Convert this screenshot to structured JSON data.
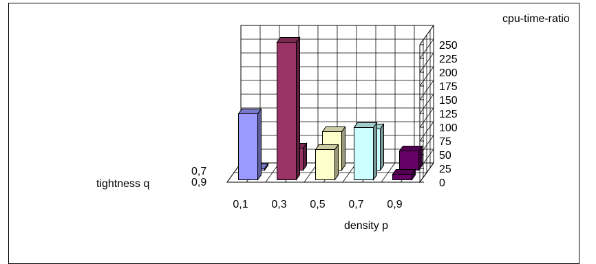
{
  "chart_data": {
    "type": "bar",
    "subtype": "3d-column",
    "title": "",
    "zlabel": "cpu-time-ratio",
    "xlabel": "density p",
    "ylabel": "tightness q",
    "x_categories": [
      "0,1",
      "0,3",
      "0,5",
      "0,7",
      "0,9"
    ],
    "y_categories": [
      "0,7",
      "0,9"
    ],
    "z_ticks": [
      "0",
      "25",
      "50",
      "75",
      "100",
      "125",
      "150",
      "175",
      "200",
      "225",
      "250"
    ],
    "zlim": [
      0,
      250
    ],
    "grid": true,
    "series": [
      {
        "values": [
          3,
          40,
          70,
          75,
          35
        ],
        "colors": [
          "#9999ff",
          "#993366",
          "#ffffcc",
          "#ccffff",
          "#660066"
        ]
      },
      {
        "values": [
          120,
          250,
          55,
          95,
          10
        ],
        "colors": [
          "#9999ff",
          "#993366",
          "#ffffcc",
          "#ccffff",
          "#660066"
        ]
      }
    ]
  }
}
